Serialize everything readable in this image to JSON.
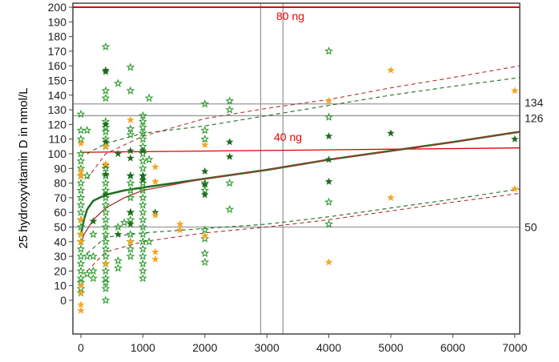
{
  "chart_data": {
    "type": "scatter",
    "title": "",
    "xlabel": "",
    "ylabel": "25 hydroxyvitamin D in nmol/L",
    "xlim": [
      -130,
      7100
    ],
    "ylim": [
      -23,
      201
    ],
    "xticks": [
      "0",
      "1000",
      "2000",
      "3000",
      "4000",
      "5000",
      "6000",
      "7000"
    ],
    "yticks": [
      "0",
      "10",
      "20",
      "30",
      "40",
      "50",
      "60",
      "70",
      "80",
      "90",
      "100",
      "110",
      "120",
      "130",
      "140",
      "150",
      "160",
      "170",
      "180",
      "190",
      "200"
    ],
    "grid": false,
    "colors": {
      "green": "#2e9b2e",
      "dark": "#1f6b1f",
      "orange": "#f5a623",
      "red": "#e00000",
      "ref": "#999999",
      "fit_green": "#1e6e1e",
      "fit_red": "#b03030"
    },
    "reference_lines": {
      "horizontal": [
        {
          "y": 134,
          "label": "134"
        },
        {
          "y": 126,
          "label": "126"
        },
        {
          "y": 50,
          "label": "50"
        }
      ],
      "vertical": [
        2900,
        3260
      ]
    },
    "threshold_lines": [
      {
        "label": "80 ng",
        "points": [
          [
            -130,
            200
          ],
          [
            7100,
            200
          ]
        ]
      },
      {
        "label": "40 ng",
        "points": [
          [
            0,
            101
          ],
          [
            7100,
            104
          ]
        ]
      }
    ],
    "fits": [
      {
        "style": "solid",
        "color": "green",
        "points": [
          [
            0,
            45
          ],
          [
            50,
            55
          ],
          [
            100,
            62
          ],
          [
            200,
            68
          ],
          [
            400,
            72
          ],
          [
            700,
            75
          ],
          [
            1000,
            77
          ],
          [
            2000,
            83
          ],
          [
            3000,
            89
          ],
          [
            4000,
            96
          ],
          [
            5000,
            102
          ],
          [
            6000,
            108
          ],
          [
            7100,
            115
          ]
        ]
      },
      {
        "style": "solid",
        "color": "red",
        "points": [
          [
            0,
            38
          ],
          [
            50,
            45
          ],
          [
            200,
            55
          ],
          [
            400,
            63
          ],
          [
            700,
            70
          ],
          [
            1000,
            75
          ],
          [
            2000,
            83
          ],
          [
            3000,
            89
          ],
          [
            4000,
            96
          ],
          [
            5000,
            102
          ],
          [
            6000,
            108
          ],
          [
            7100,
            115
          ]
        ]
      },
      {
        "style": "dashed",
        "color": "green",
        "points": [
          [
            100,
            100
          ],
          [
            400,
            107
          ],
          [
            1000,
            114
          ],
          [
            2000,
            119
          ],
          [
            3000,
            126
          ],
          [
            4000,
            133
          ],
          [
            5000,
            140
          ],
          [
            6000,
            146
          ],
          [
            7100,
            152
          ]
        ]
      },
      {
        "style": "dashed",
        "color": "red",
        "points": [
          [
            100,
            83
          ],
          [
            400,
            100
          ],
          [
            1000,
            112
          ],
          [
            2000,
            124
          ],
          [
            3000,
            131
          ],
          [
            4000,
            137
          ],
          [
            5000,
            145
          ],
          [
            6000,
            152
          ],
          [
            7100,
            160
          ]
        ]
      },
      {
        "style": "dashed",
        "color": "green",
        "points": [
          [
            100,
            32
          ],
          [
            400,
            43
          ],
          [
            1000,
            46
          ],
          [
            2000,
            49
          ],
          [
            3000,
            52
          ],
          [
            4000,
            57
          ],
          [
            5000,
            63
          ],
          [
            6000,
            69
          ],
          [
            7100,
            76
          ]
        ]
      },
      {
        "style": "dashed",
        "color": "red",
        "points": [
          [
            100,
            20
          ],
          [
            400,
            33
          ],
          [
            1000,
            40
          ],
          [
            2000,
            46
          ],
          [
            3000,
            50
          ],
          [
            4000,
            55
          ],
          [
            5000,
            61
          ],
          [
            6000,
            67
          ],
          [
            7100,
            73
          ]
        ]
      }
    ],
    "series": [
      {
        "color": "green",
        "filled": false,
        "points": [
          [
            0,
            127
          ],
          [
            0,
            116
          ],
          [
            0,
            110
          ],
          [
            0,
            100
          ],
          [
            0,
            95
          ],
          [
            0,
            90
          ],
          [
            0,
            85
          ],
          [
            0,
            80
          ],
          [
            0,
            75
          ],
          [
            0,
            70
          ],
          [
            0,
            65
          ],
          [
            0,
            60
          ],
          [
            0,
            55
          ],
          [
            0,
            50
          ],
          [
            0,
            45
          ],
          [
            0,
            40
          ],
          [
            0,
            35
          ],
          [
            0,
            30
          ],
          [
            0,
            25
          ],
          [
            0,
            20
          ],
          [
            0,
            15
          ],
          [
            0,
            12
          ],
          [
            0,
            8
          ],
          [
            0,
            5
          ],
          [
            100,
            116
          ],
          [
            100,
            85
          ],
          [
            100,
            30
          ],
          [
            100,
            18
          ],
          [
            200,
            45
          ],
          [
            200,
            30
          ],
          [
            200,
            20
          ],
          [
            200,
            15
          ],
          [
            400,
            173
          ],
          [
            400,
            143
          ],
          [
            400,
            138
          ],
          [
            400,
            122
          ],
          [
            400,
            118
          ],
          [
            400,
            115
          ],
          [
            400,
            110
          ],
          [
            400,
            105
          ],
          [
            400,
            90
          ],
          [
            400,
            85
          ],
          [
            400,
            80
          ],
          [
            400,
            75
          ],
          [
            400,
            70
          ],
          [
            400,
            65
          ],
          [
            400,
            60
          ],
          [
            400,
            55
          ],
          [
            400,
            50
          ],
          [
            400,
            45
          ],
          [
            400,
            40
          ],
          [
            400,
            35
          ],
          [
            400,
            30
          ],
          [
            400,
            25
          ],
          [
            400,
            20
          ],
          [
            400,
            15
          ],
          [
            400,
            12
          ],
          [
            400,
            8
          ],
          [
            400,
            0
          ],
          [
            600,
            148
          ],
          [
            600,
            50
          ],
          [
            600,
            27
          ],
          [
            600,
            22
          ],
          [
            700,
            53
          ],
          [
            800,
            159
          ],
          [
            800,
            143
          ],
          [
            800,
            117
          ],
          [
            800,
            113
          ],
          [
            800,
            85
          ],
          [
            800,
            80
          ],
          [
            800,
            75
          ],
          [
            800,
            70
          ],
          [
            800,
            60
          ],
          [
            800,
            55
          ],
          [
            800,
            45
          ],
          [
            800,
            40
          ],
          [
            800,
            35
          ],
          [
            800,
            30
          ],
          [
            1000,
            126
          ],
          [
            1000,
            122
          ],
          [
            1000,
            118
          ],
          [
            1000,
            114
          ],
          [
            1000,
            110
          ],
          [
            1000,
            105
          ],
          [
            1000,
            100
          ],
          [
            1000,
            95
          ],
          [
            1000,
            90
          ],
          [
            1000,
            85
          ],
          [
            1000,
            80
          ],
          [
            1000,
            75
          ],
          [
            1000,
            70
          ],
          [
            1000,
            65
          ],
          [
            1000,
            60
          ],
          [
            1000,
            55
          ],
          [
            1000,
            50
          ],
          [
            1000,
            45
          ],
          [
            1000,
            40
          ],
          [
            1000,
            35
          ],
          [
            1000,
            30
          ],
          [
            1000,
            25
          ],
          [
            1000,
            20
          ],
          [
            1000,
            15
          ],
          [
            1100,
            138
          ],
          [
            1100,
            96
          ],
          [
            1100,
            40
          ],
          [
            2000,
            134
          ],
          [
            2000,
            116
          ],
          [
            2000,
            110
          ],
          [
            2000,
            80
          ],
          [
            2000,
            75
          ],
          [
            2000,
            48
          ],
          [
            2000,
            42
          ],
          [
            2000,
            32
          ],
          [
            2000,
            26
          ],
          [
            2400,
            136
          ],
          [
            2400,
            130
          ],
          [
            2400,
            80
          ],
          [
            2400,
            62
          ],
          [
            4000,
            170
          ],
          [
            4000,
            125
          ],
          [
            4000,
            67
          ],
          [
            4000,
            52
          ]
        ]
      },
      {
        "color": "dark",
        "filled": true,
        "points": [
          [
            200,
            54
          ],
          [
            400,
            157
          ],
          [
            400,
            156
          ],
          [
            400,
            120
          ],
          [
            400,
            108
          ],
          [
            400,
            92
          ],
          [
            400,
            86
          ],
          [
            400,
            72
          ],
          [
            600,
            100
          ],
          [
            600,
            45
          ],
          [
            800,
            102
          ],
          [
            800,
            97
          ],
          [
            800,
            85
          ],
          [
            800,
            60
          ],
          [
            800,
            52
          ],
          [
            1000,
            102
          ],
          [
            1000,
            85
          ],
          [
            1000,
            82
          ],
          [
            1200,
            60
          ],
          [
            2000,
            88
          ],
          [
            2000,
            79
          ],
          [
            2000,
            72
          ],
          [
            2400,
            108
          ],
          [
            2400,
            98
          ],
          [
            4000,
            112
          ],
          [
            4000,
            96
          ],
          [
            4000,
            81
          ],
          [
            5000,
            114
          ],
          [
            7000,
            110
          ]
        ]
      },
      {
        "color": "orange",
        "filled": true,
        "points": [
          [
            0,
            107
          ],
          [
            0,
            88
          ],
          [
            0,
            85
          ],
          [
            0,
            55
          ],
          [
            0,
            45
          ],
          [
            0,
            40
          ],
          [
            0,
            10
          ],
          [
            0,
            5
          ],
          [
            0,
            -3
          ],
          [
            0,
            -7
          ],
          [
            400,
            105
          ],
          [
            400,
            93
          ],
          [
            400,
            25
          ],
          [
            800,
            123
          ],
          [
            800,
            40
          ],
          [
            1200,
            91
          ],
          [
            1200,
            81
          ],
          [
            1200,
            58
          ],
          [
            1200,
            33
          ],
          [
            1200,
            28
          ],
          [
            1600,
            52
          ],
          [
            1600,
            48
          ],
          [
            2000,
            106
          ],
          [
            2000,
            44
          ],
          [
            4000,
            136
          ],
          [
            4000,
            26
          ],
          [
            5000,
            157
          ],
          [
            5000,
            70
          ],
          [
            7000,
            143
          ],
          [
            7000,
            76
          ]
        ]
      }
    ]
  }
}
